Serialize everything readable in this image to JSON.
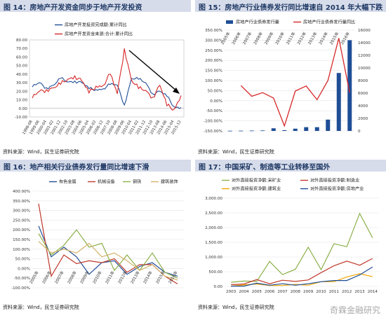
{
  "charts": [
    {
      "header": "图 14：房地产开发资金同步于地产开发投资",
      "source": "资料来源：Wind，民生证券研究院",
      "chart_data": {
        "type": "line",
        "title": "",
        "x": [
          "1998-08",
          "1999-06",
          "2000-04",
          "2001-02",
          "2001-12",
          "2002-10",
          "2003-08",
          "2004-06",
          "2005-04",
          "2006-02",
          "2006-12",
          "2007-10",
          "2008-08",
          "2009-06",
          "2010-04",
          "2011-02",
          "2011-12",
          "2012-10",
          "2013-08",
          "2014-06",
          "2015-04",
          "2015-12"
        ],
        "series": [
          {
            "name": "房地产开发投资完成额:累计同比",
            "color": "#1f4e96",
            "values": [
              25,
              30,
              24,
              27,
              35,
              31,
              32,
              30,
              23,
              22,
              23,
              28,
              27,
              4,
              35,
              34,
              30,
              17,
              20,
              14,
              2,
              1
            ]
          },
          {
            "name": "房地产开发资金来源:合计:累计同比",
            "color": "#d62728",
            "values": [
              12,
              20,
              22,
              24,
              28,
              34,
              38,
              32,
              18,
              26,
              27,
              40,
              17,
              70,
              33,
              23,
              21,
              13,
              27,
              3,
              -1,
              15
            ]
          }
        ],
        "ylim": [
          -10,
          80
        ],
        "yticks": [
          "80.00",
          "70.00",
          "60.00",
          "50.00",
          "40.00",
          "30.00",
          "20.00",
          "10.00",
          "0.00",
          "-10.00"
        ],
        "legend": "top",
        "annotation": "downward arrow"
      }
    },
    {
      "header": "图 15：房地产行业债券发行同比增速自 2014 年大幅下跌",
      "source": "资料来源：Wind，民生证券研究院",
      "chart_data": {
        "type": "bar",
        "categories": [
          "2005年",
          "2006年",
          "2007年",
          "2008年",
          "2009年",
          "2010年",
          "2011年",
          "2012年",
          "2013年",
          "2014年",
          "2015年",
          "2016年"
        ],
        "series": [
          {
            "name": "房地产行业债券发行量",
            "color": "#1f4e96",
            "values": [
              30,
              40,
              60,
              80,
              420,
              120,
              360,
              600,
              600,
              1800,
              9200,
              14400
            ]
          },
          {
            "name": "房地产行业债券发行量同比",
            "color": "#d62728",
            "values": [
              null,
              75,
              22,
              40,
              13,
              -125,
              48,
              73,
              5,
              100,
              310,
              40
            ]
          }
        ],
        "y_left": {
          "ticks": [
            "350.00%",
            "300.00%",
            "250.00%",
            "200.00%",
            "150.00%",
            "100.00%",
            "50.00%",
            "0.00%",
            "-50.00%",
            "-100.00%",
            "-150.00%"
          ],
          "lim": [
            -150,
            350
          ]
        },
        "y_right": {
          "ticks": [
            "16000",
            "14000",
            "12000",
            "10000",
            "8000",
            "6000",
            "4000",
            "2000",
            "0"
          ],
          "lim": [
            0,
            16000
          ]
        },
        "legend": "top"
      }
    },
    {
      "header": "图 16：地产相关行业债券发行量同比增速下滑",
      "source": "资料来源：Wind，民生证券研究院",
      "chart_data": {
        "type": "line",
        "categories": [
          "2005年",
          "2006年",
          "2007年",
          "2008年",
          "2009年",
          "2010年",
          "2011年",
          "2012年",
          "2013年",
          "2014年",
          "2015年",
          "2016年"
        ],
        "series": [
          {
            "name": "有色金属",
            "color": "#1f4e96",
            "values": [
              220,
              60,
              110,
              60,
              -30,
              30,
              40,
              -30,
              10,
              30,
              -20,
              -40
            ]
          },
          {
            "name": "机械设备",
            "color": "#c0392b",
            "values": [
              335,
              -40,
              70,
              25,
              40,
              30,
              50,
              -20,
              20,
              20,
              -40,
              -80
            ]
          },
          {
            "name": "钢铁",
            "color": "#8db04a",
            "values": [
              180,
              70,
              120,
              200,
              110,
              130,
              -10,
              70,
              -10,
              80,
              -20,
              -50
            ]
          },
          {
            "name": "建筑装饰",
            "color": "#d4b36a",
            "values": [
              140,
              80,
              100,
              80,
              130,
              60,
              80,
              40,
              -10,
              20,
              -40,
              -60
            ]
          }
        ],
        "ylim": [
          -100,
          400
        ],
        "yticks": [
          "400.00%",
          "350.00%",
          "300.00%",
          "250.00%",
          "200.00%",
          "150.00%",
          "100.00%",
          "50.00%",
          "0.00%",
          "-50.00%",
          "-100.00%"
        ],
        "legend": "top"
      }
    },
    {
      "header": "图 17：中国采矿、制造等工业转移至国外",
      "source": "资料来源：Wind，民生证券研究院",
      "watermark": "奇霖金融研究",
      "chart_data": {
        "type": "line",
        "categories": [
          "2003",
          "2004",
          "2005",
          "2006",
          "2007",
          "2008",
          "2009",
          "2010",
          "2011",
          "2012",
          "2013",
          "2014"
        ],
        "series": [
          {
            "name": "对外直接投资净额:采矿业",
            "color": "#8db04a",
            "values": [
              140,
              180,
              170,
              850,
              400,
              580,
              1330,
              570,
              1450,
              1350,
              2480,
              1650
            ]
          },
          {
            "name": "对外直接投资净额:制造业",
            "color": "#c0392b",
            "values": [
              60,
              80,
              230,
              90,
              210,
              170,
              220,
              470,
              700,
              860,
              720,
              950
            ]
          },
          {
            "name": "对外直接投资净额:建筑业",
            "color": "#f0a500",
            "values": [
              10,
              50,
              80,
              30,
              30,
              70,
              40,
              160,
              160,
              320,
              430,
              330
            ]
          },
          {
            "name": "对外直接投资净额:房地产业",
            "color": "#1f4e96",
            "values": [
              10,
              10,
              110,
              40,
              90,
              40,
              90,
              160,
              200,
              200,
              390,
              660
            ]
          }
        ],
        "ylim": [
          0,
          3000
        ],
        "yticks": [
          "3,000.00",
          "2,500.00",
          "2,000.00",
          "1,500.00",
          "1,000.00",
          "500.00",
          "0.00"
        ],
        "legend": "top"
      }
    }
  ]
}
